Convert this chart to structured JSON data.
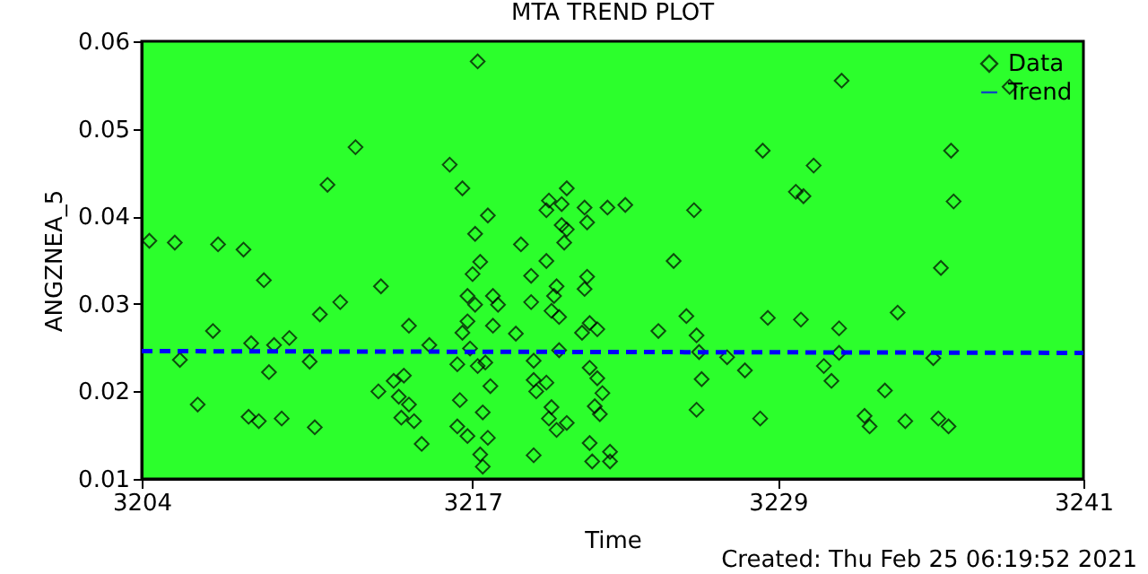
{
  "chart_data": {
    "type": "scatter",
    "title": "MTA TREND PLOT",
    "xlabel": "Time",
    "ylabel": "ANGZNEA_5",
    "annotations": [
      "Created: Thu Feb 25 06:19:52 2021"
    ],
    "xlim": [
      3204,
      3241
    ],
    "ylim": [
      0.01,
      0.06
    ],
    "xticks": [
      3204,
      3217,
      3229,
      3241
    ],
    "yticks": [
      0.01,
      0.02,
      0.03,
      0.04,
      0.05,
      0.06
    ],
    "grid": false,
    "legend": "top right",
    "series": [
      {
        "name": "Data",
        "marker": "diamond",
        "color": "#000000",
        "x": [
          3204.3,
          3205.3,
          3205.5,
          3206.2,
          3206.8,
          3207.0,
          3208.0,
          3208.2,
          3208.3,
          3208.6,
          3208.8,
          3209.0,
          3209.2,
          3209.5,
          3209.8,
          3210.6,
          3210.8,
          3211.0,
          3211.3,
          3211.8,
          3212.4,
          3213.4,
          3213.3,
          3213.9,
          3214.1,
          3214.3,
          3214.2,
          3214.5,
          3214.5,
          3214.7,
          3215.0,
          3215.3,
          3216.1,
          3216.6,
          3216.4,
          3216.4,
          3216.5,
          3217.2,
          3217.6,
          3217.1,
          3217.3,
          3217.0,
          3216.8,
          3217.1,
          3217.8,
          3218.0,
          3216.8,
          3217.8,
          3216.6,
          3216.9,
          3218.7,
          3217.2,
          3217.5,
          3217.7,
          3217.4,
          3216.8,
          3217.6,
          3217.3,
          3217.4,
          3218.9,
          3219.4,
          3219.3,
          3219.3,
          3219.4,
          3219.4,
          3219.5,
          3219.9,
          3220.0,
          3219.9,
          3220.7,
          3220.5,
          3220.5,
          3220.7,
          3220.6,
          3220.3,
          3220.2,
          3220.1,
          3220.4,
          3220.4,
          3220.1,
          3220.0,
          3220.3,
          3220.7,
          3219.9,
          3221.4,
          3221.5,
          3222.3,
          3223.0,
          3221.5,
          3221.4,
          3221.6,
          3221.9,
          3221.3,
          3221.6,
          3221.9,
          3222.1,
          3221.8,
          3222.0,
          3221.6,
          3221.7,
          3222.4,
          3222.4,
          3224.3,
          3224.9,
          3225.4,
          3225.7,
          3225.8,
          3225.9,
          3226.0,
          3225.8,
          3227.0,
          3227.7,
          3228.3,
          3228.4,
          3228.6,
          3229.7,
          3230.0,
          3230.4,
          3229.9,
          3230.8,
          3231.1,
          3231.4,
          3231.4,
          3231.5,
          3232.4,
          3232.6,
          3233.2,
          3233.7,
          3234.0,
          3235.1,
          3235.3,
          3235.7,
          3235.4,
          3235.8,
          3235.9,
          3238.1
        ],
        "values": [
          0.0372,
          0.037,
          0.0236,
          0.0185,
          0.0269,
          0.0368,
          0.0362,
          0.0171,
          0.0255,
          0.0166,
          0.0327,
          0.0222,
          0.0253,
          0.0169,
          0.0261,
          0.0234,
          0.0159,
          0.0288,
          0.0436,
          0.0302,
          0.0479,
          0.032,
          0.02,
          0.0212,
          0.0194,
          0.0218,
          0.017,
          0.0185,
          0.0275,
          0.0166,
          0.014,
          0.0253,
          0.0459,
          0.0432,
          0.016,
          0.0231,
          0.019,
          0.0577,
          0.0401,
          0.038,
          0.0348,
          0.0334,
          0.0309,
          0.0299,
          0.0309,
          0.0299,
          0.028,
          0.0275,
          0.0267,
          0.0249,
          0.0266,
          0.0229,
          0.0233,
          0.0206,
          0.0176,
          0.0149,
          0.0147,
          0.0128,
          0.0114,
          0.0368,
          0.0127,
          0.0332,
          0.0302,
          0.0235,
          0.0213,
          0.02,
          0.0349,
          0.0418,
          0.0407,
          0.0432,
          0.0414,
          0.039,
          0.0385,
          0.037,
          0.032,
          0.0309,
          0.0292,
          0.0285,
          0.0247,
          0.0182,
          0.0169,
          0.0156,
          0.0164,
          0.021,
          0.041,
          0.0393,
          0.041,
          0.0413,
          0.0331,
          0.0317,
          0.0278,
          0.0271,
          0.0267,
          0.0227,
          0.0215,
          0.0198,
          0.0183,
          0.0174,
          0.0141,
          0.012,
          0.0131,
          0.012,
          0.0269,
          0.0349,
          0.0286,
          0.0407,
          0.0264,
          0.0245,
          0.0214,
          0.0179,
          0.0239,
          0.0224,
          0.0169,
          0.0475,
          0.0284,
          0.0428,
          0.0423,
          0.0458,
          0.0282,
          0.0229,
          0.0212,
          0.0272,
          0.0244,
          0.0555,
          0.0172,
          0.016,
          0.0201,
          0.029,
          0.0166,
          0.0238,
          0.0169,
          0.016,
          0.0341,
          0.0475,
          0.0417,
          0.0548
        ]
      },
      {
        "name": "Trend",
        "type": "line",
        "line_style": "dashed",
        "color": "#0000ff",
        "x": [
          3204,
          3241
        ],
        "values": [
          0.0246,
          0.0244
        ]
      }
    ]
  }
}
